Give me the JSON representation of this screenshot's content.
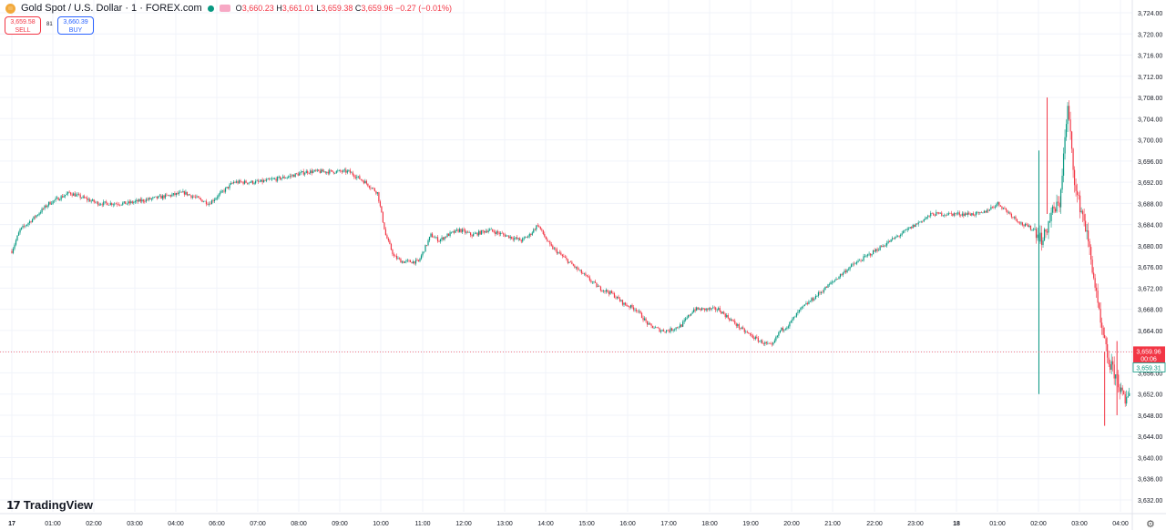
{
  "header": {
    "symbol": "Gold Spot / U.S. Dollar · 1 · FOREX.com",
    "open_label": "O",
    "open": "3,660.23",
    "high_label": "H",
    "high": "3,661.01",
    "low_label": "L",
    "low": "3,659.38",
    "close_label": "C",
    "close": "3,659.96",
    "change": "−0.27 (−0.01%)"
  },
  "trade": {
    "sell_price": "3,659.58",
    "sell_label": "SELL",
    "buy_price": "3,660.39",
    "buy_label": "BUY",
    "spread": "81"
  },
  "brand": {
    "name": "TradingView",
    "mark": "17"
  },
  "colors": {
    "up": "#089981",
    "down": "#f23645",
    "grid": "#f0f3fa",
    "text": "#131722"
  },
  "chart_data": {
    "type": "candlestick",
    "y_ticks": [
      "3,724.00",
      "3,720.00",
      "3,716.00",
      "3,712.00",
      "3,708.00",
      "3,704.00",
      "3,700.00",
      "3,696.00",
      "3,692.00",
      "3,688.00",
      "3,684.00",
      "3,680.00",
      "3,676.00",
      "3,672.00",
      "3,668.00",
      "3,664.00",
      "3,660.00",
      "3,656.00",
      "3,652.00",
      "3,648.00",
      "3,644.00",
      "3,640.00",
      "3,636.00",
      "3,632.00"
    ],
    "ylim": [
      3630,
      3726
    ],
    "x_ticks": [
      "17",
      "01:00",
      "02:00",
      "03:00",
      "04:00",
      "06:00",
      "07:00",
      "08:00",
      "09:00",
      "10:00",
      "11:00",
      "12:00",
      "13:00",
      "14:00",
      "15:00",
      "16:00",
      "17:00",
      "18:00",
      "19:00",
      "20:00",
      "21:00",
      "22:00",
      "23:00",
      "18",
      "01:00",
      "02:00",
      "03:00",
      "04:00"
    ],
    "last_price": "3,659.96",
    "countdown": "00:06",
    "second_price": "3,659.31",
    "path_time": [
      0,
      0.2,
      0.5,
      0.9,
      1.4,
      2.1,
      2.8,
      3.5,
      4.2,
      4.8,
      5.4,
      6.0,
      6.7,
      7.2,
      7.7,
      8.2,
      8.6,
      8.9,
      9.1,
      9.3,
      9.5,
      9.7,
      9.9,
      10.2,
      10.4,
      10.6,
      10.9,
      11.2,
      11.6,
      12.0,
      12.4,
      12.6,
      12.8,
      13.1,
      13.4,
      13.7,
      14.0,
      14.3,
      14.6,
      14.9,
      15.2,
      15.5,
      15.8,
      16.0,
      16.3,
      16.6,
      16.9,
      17.2,
      17.5,
      17.8,
      18.0,
      18.2,
      18.5,
      18.7,
      18.9,
      19.2,
      19.5,
      19.8,
      20.1,
      20.4,
      20.8,
      21.2,
      21.6,
      22.0,
      22.4,
      22.8,
      23.2,
      23.6,
      24.0,
      24.3,
      24.6,
      24.9,
      25.1,
      25.3,
      25.5,
      25.7,
      25.9,
      26.1,
      26.3,
      26.5,
      26.7,
      26.9,
      27.1,
      27.3,
      27.5,
      27.8,
      28.1,
      28.3
    ],
    "path_price": [
      3679,
      3683,
      3685,
      3688,
      3690,
      3688,
      3688,
      3689,
      3690,
      3688,
      3692,
      3692,
      3693,
      3694,
      3694,
      3694,
      3692,
      3690,
      3682,
      3678,
      3677,
      3677,
      3677,
      3682,
      3681,
      3682,
      3683,
      3682,
      3683,
      3682,
      3681,
      3682,
      3684,
      3680,
      3678,
      3676,
      3674,
      3672,
      3671,
      3669,
      3668,
      3665,
      3664,
      3664,
      3665,
      3668,
      3668,
      3668,
      3666,
      3664,
      3663,
      3662,
      3661,
      3664,
      3665,
      3668,
      3670,
      3672,
      3674,
      3676,
      3678,
      3680,
      3682,
      3684,
      3686,
      3686,
      3686,
      3686,
      3688,
      3686,
      3684,
      3683,
      3681,
      3686,
      3688,
      3706,
      3690,
      3685,
      3676,
      3665,
      3658,
      3655,
      3650,
      3656,
      3660,
      3662,
      3660,
      3659.96
    ],
    "spikes": [
      {
        "time": 25.0,
        "low": 3652,
        "high": 3698
      },
      {
        "time": 25.2,
        "low": 3686,
        "high": 3708
      },
      {
        "time": 26.6,
        "low": 3646,
        "high": 3660
      },
      {
        "time": 26.9,
        "low": 3648,
        "high": 3662
      }
    ]
  }
}
